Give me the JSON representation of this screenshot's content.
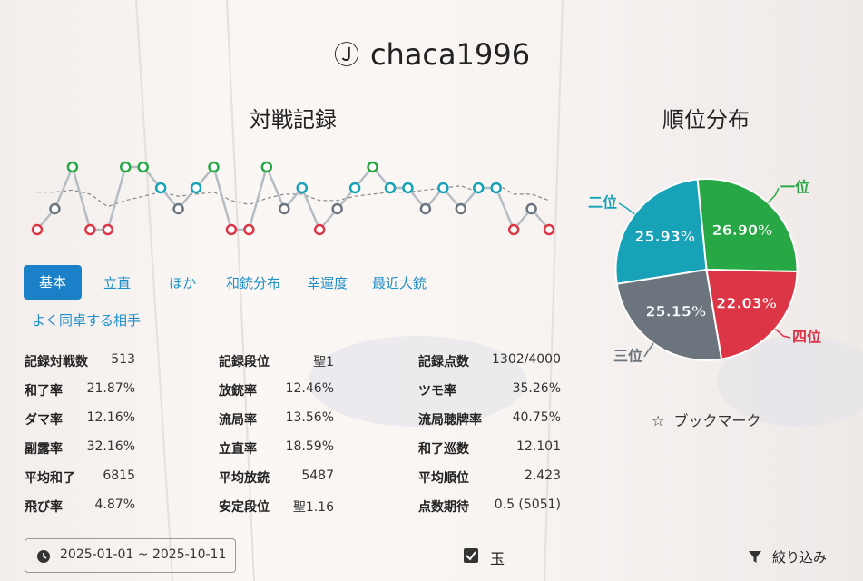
{
  "header": {
    "badge": "Ⓙ",
    "title": "chaca1996"
  },
  "record_chart": {
    "type": "line",
    "title": "対戦記録",
    "ranks": [
      4,
      3,
      1,
      4,
      4,
      1,
      1,
      2,
      3,
      2,
      1,
      4,
      4,
      1,
      3,
      2,
      4,
      3,
      2,
      1,
      2,
      2,
      3,
      2,
      3,
      2,
      2,
      4,
      3,
      4
    ],
    "moving_average": [
      2.2,
      2.2,
      2.1,
      2.3,
      2.9,
      2.6,
      2.4,
      2.2,
      2.4,
      2.3,
      2.2,
      2.6,
      2.8,
      2.5,
      2.3,
      2.3,
      2.6,
      2.6,
      2.4,
      2.3,
      2.2,
      2.2,
      2.1,
      2.0,
      1.9,
      2.2,
      1.8,
      2.3,
      2.3,
      2.6
    ],
    "ylim": [
      1,
      4
    ],
    "rank_colors": [
      "#28a745",
      "#17a2b8",
      "#6c757d",
      "#dc3545"
    ]
  },
  "chart_data": {
    "type": "pie",
    "title": "順位分布",
    "categories": [
      "一位",
      "二位",
      "三位",
      "四位"
    ],
    "values": [
      26.9,
      25.93,
      25.15,
      22.03
    ],
    "value_labels": [
      "26.90%",
      "25.93%",
      "25.15%",
      "22.03%"
    ],
    "colors": [
      "#28a745",
      "#17a2b8",
      "#6c757d",
      "#dc3545"
    ]
  },
  "tabs": [
    "基本",
    "立直",
    "ほか",
    "和銃分布",
    "幸運度",
    "最近大銃",
    "よく同卓する相手"
  ],
  "stats": [
    [
      {
        "label": "記録対戦数",
        "value": "513"
      },
      {
        "label": "和了率",
        "value": "21.87%"
      },
      {
        "label": "ダマ率",
        "value": "12.16%"
      },
      {
        "label": "副露率",
        "value": "32.16%"
      },
      {
        "label": "平均和了",
        "value": "6815"
      },
      {
        "label": "飛び率",
        "value": "4.87%"
      }
    ],
    [
      {
        "label": "記録段位",
        "value": "聖1"
      },
      {
        "label": "放銃率",
        "value": "12.46%"
      },
      {
        "label": "流局率",
        "value": "13.56%"
      },
      {
        "label": "立直率",
        "value": "18.59%"
      },
      {
        "label": "平均放銃",
        "value": "5487"
      },
      {
        "label": "安定段位",
        "value": "聖1.16"
      }
    ],
    [
      {
        "label": "記録点数",
        "value": "1302/4000"
      },
      {
        "label": "ツモ率",
        "value": "35.26%"
      },
      {
        "label": "流局聴牌率",
        "value": "40.75%"
      },
      {
        "label": "和了巡数",
        "value": "12.101"
      },
      {
        "label": "平均順位",
        "value": "2.423"
      },
      {
        "label": "点数期待",
        "value": "0.5 (5051)"
      }
    ]
  ],
  "bookmark": "ブックマーク",
  "footer": {
    "date_range": "2025-01-01 ~ 2025-10-11",
    "checkbox": "玉",
    "filter": "絞り込み"
  }
}
